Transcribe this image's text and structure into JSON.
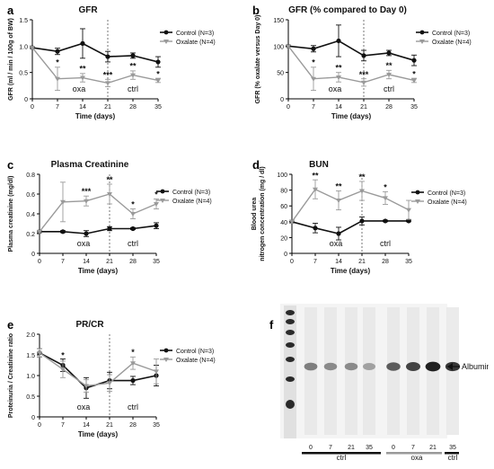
{
  "panels": [
    {
      "letter": "a",
      "title": "GFR",
      "ylabel": "GFR (ml / min / 100g of BW)",
      "xlabel": "Time (days)",
      "yticks": [
        "0",
        "0.5",
        "1.0",
        "1.5"
      ],
      "ylim": [
        0,
        1.5
      ],
      "xticks": [
        "0",
        "7",
        "14",
        "21",
        "28",
        "35"
      ],
      "phase_labels": [
        "oxa",
        "ctrl"
      ],
      "legend": [
        "Control (N=3)",
        "Oxalate (N=4)"
      ]
    },
    {
      "letter": "b",
      "title": "GFR (% compared to Day 0)",
      "ylabel": "GFR (% oxalate versus Day 0)",
      "xlabel": "Time (days)",
      "yticks": [
        "0",
        "50",
        "100",
        "150"
      ],
      "ylim": [
        0,
        150
      ],
      "xticks": [
        "0",
        "7",
        "14",
        "21",
        "28",
        "35"
      ],
      "phase_labels": [
        "oxa",
        "ctrl"
      ],
      "legend": [
        "Control (N=3)",
        "Oxalate (N=4)"
      ]
    },
    {
      "letter": "c",
      "title": "Plasma Creatinine",
      "ylabel": "Plasma creatinine (mg/dl)",
      "xlabel": "Time (days)",
      "yticks": [
        "0",
        "0.2",
        "0.4",
        "0.6",
        "0.8"
      ],
      "ylim": [
        0,
        0.8
      ],
      "xticks": [
        "0",
        "7",
        "14",
        "21",
        "28",
        "35"
      ],
      "phase_labels": [
        "oxa",
        "ctrl"
      ],
      "legend": [
        "Control (N=3)",
        "Oxalate (N=4)"
      ]
    },
    {
      "letter": "d",
      "title": "BUN",
      "ylabel": "Blood urea nitrogen concentration (mg / dl)",
      "xlabel": "Time (days)",
      "yticks": [
        "0",
        "20",
        "40",
        "60",
        "80",
        "100"
      ],
      "ylim": [
        0,
        100
      ],
      "xticks": [
        "0",
        "7",
        "14",
        "21",
        "28",
        "35"
      ],
      "phase_labels": [
        "oxa",
        "ctrl"
      ],
      "legend": [
        "Control (N=3)",
        "Oxalate (N=4)"
      ]
    },
    {
      "letter": "e",
      "title": "PR/CR",
      "ylabel": "Proteinuria / Creatinine ratio",
      "xlabel": "Time (days)",
      "yticks": [
        "0",
        "0.5",
        "1.0",
        "1.5",
        "2.0"
      ],
      "ylim": [
        0,
        2.0
      ],
      "xticks": [
        "0",
        "7",
        "14",
        "21",
        "28",
        "35"
      ],
      "phase_labels": [
        "oxa",
        "ctrl"
      ],
      "legend": [
        "Control (N=3)",
        "Oxalate (N=4)"
      ]
    }
  ],
  "chart_data": [
    {
      "type": "line",
      "title": "GFR",
      "xlabel": "Time (days)",
      "ylabel": "GFR (ml / min / 100g of BW)",
      "x": [
        0,
        7,
        14,
        21,
        28,
        35
      ],
      "ylim": [
        0,
        1.5
      ],
      "xlim": [
        0,
        35
      ],
      "series": [
        {
          "name": "Control (N=3)",
          "values": [
            0.97,
            0.9,
            1.05,
            0.8,
            0.82,
            0.7
          ],
          "errors": [
            0.02,
            0.06,
            0.28,
            0.1,
            0.05,
            0.1
          ]
        },
        {
          "name": "Oxalate (N=4)",
          "values": [
            0.97,
            0.38,
            0.4,
            0.3,
            0.45,
            0.35
          ],
          "errors": [
            0.02,
            0.22,
            0.08,
            0.07,
            0.08,
            0.04
          ]
        }
      ],
      "annotations": [
        {
          "x": 7,
          "y": 0.64,
          "text": "*"
        },
        {
          "x": 14,
          "y": 0.52,
          "text": "**"
        },
        {
          "x": 21,
          "y": 0.4,
          "text": "***"
        },
        {
          "x": 28,
          "y": 0.57,
          "text": "**"
        },
        {
          "x": 35,
          "y": 0.42,
          "text": "*"
        }
      ],
      "divider_x": 21
    },
    {
      "type": "line",
      "title": "GFR (% compared to Day 0)",
      "xlabel": "Time (days)",
      "ylabel": "GFR (% oxalate versus Day 0)",
      "x": [
        0,
        7,
        14,
        21,
        28,
        35
      ],
      "ylim": [
        0,
        150
      ],
      "xlim": [
        0,
        35
      ],
      "series": [
        {
          "name": "Control (N=3)",
          "values": [
            100,
            95,
            110,
            82,
            87,
            73
          ],
          "errors": [
            2,
            6,
            30,
            10,
            5,
            10
          ]
        },
        {
          "name": "Oxalate (N=4)",
          "values": [
            100,
            38,
            41,
            31,
            46,
            35
          ],
          "errors": [
            2,
            22,
            9,
            7,
            8,
            4
          ]
        }
      ],
      "annotations": [
        {
          "x": 7,
          "y": 64,
          "text": "*"
        },
        {
          "x": 14,
          "y": 54,
          "text": "**"
        },
        {
          "x": 21,
          "y": 41,
          "text": "***"
        },
        {
          "x": 28,
          "y": 58,
          "text": "**"
        },
        {
          "x": 35,
          "y": 42,
          "text": "*"
        }
      ],
      "divider_x": 21
    },
    {
      "type": "line",
      "title": "Plasma Creatinine",
      "xlabel": "Time (days)",
      "ylabel": "Plasma creatinine (mg/dl)",
      "x": [
        0,
        7,
        14,
        21,
        28,
        35
      ],
      "ylim": [
        0,
        0.8
      ],
      "xlim": [
        0,
        35
      ],
      "series": [
        {
          "name": "Control (N=3)",
          "values": [
            0.22,
            0.22,
            0.2,
            0.25,
            0.25,
            0.28
          ],
          "errors": [
            0.01,
            0.01,
            0.03,
            0.02,
            0.01,
            0.03
          ]
        },
        {
          "name": "Oxalate (N=4)",
          "values": [
            0.22,
            0.52,
            0.53,
            0.6,
            0.4,
            0.5
          ],
          "errors": [
            0.01,
            0.2,
            0.05,
            0.1,
            0.05,
            0.05
          ]
        }
      ],
      "annotations": [
        {
          "x": 14,
          "y": 0.6,
          "text": "***"
        },
        {
          "x": 21,
          "y": 0.72,
          "text": "**"
        },
        {
          "x": 28,
          "y": 0.47,
          "text": "*"
        },
        {
          "x": 35,
          "y": 0.57,
          "text": "*"
        }
      ],
      "divider_x": 21
    },
    {
      "type": "line",
      "title": "BUN",
      "xlabel": "Time (days)",
      "ylabel": "Blood urea nitrogen concentration (mg / dl)",
      "x": [
        0,
        7,
        14,
        21,
        28,
        35
      ],
      "ylim": [
        0,
        100
      ],
      "xlim": [
        0,
        35
      ],
      "series": [
        {
          "name": "Control (N=3)",
          "values": [
            40,
            32,
            25,
            41,
            41,
            41
          ],
          "errors": [
            2,
            6,
            8,
            5,
            1,
            1
          ]
        },
        {
          "name": "Oxalate (N=4)",
          "values": [
            40,
            81,
            67,
            79,
            70,
            55
          ],
          "errors": [
            2,
            12,
            12,
            12,
            8,
            12
          ]
        }
      ],
      "annotations": [
        {
          "x": 7,
          "y": 95,
          "text": "**"
        },
        {
          "x": 14,
          "y": 81,
          "text": "**"
        },
        {
          "x": 21,
          "y": 93,
          "text": "**"
        },
        {
          "x": 28,
          "y": 80,
          "text": "*"
        }
      ],
      "divider_x": 21
    },
    {
      "type": "line",
      "title": "PR/CR",
      "xlabel": "Time (days)",
      "ylabel": "Proteinuria / Creatinine ratio",
      "x": [
        0,
        7,
        14,
        21,
        28,
        35
      ],
      "ylim": [
        0,
        2.0
      ],
      "xlim": [
        0,
        35
      ],
      "series": [
        {
          "name": "Control (N=3)",
          "values": [
            1.55,
            1.25,
            0.7,
            0.88,
            0.88,
            1.0
          ],
          "errors": [
            0.1,
            0.15,
            0.25,
            0.2,
            0.1,
            0.25
          ]
        },
        {
          "name": "Oxalate (N=4)",
          "values": [
            1.55,
            1.15,
            0.75,
            0.82,
            1.3,
            1.1
          ],
          "errors": [
            0.1,
            0.2,
            0.15,
            0.2,
            0.15,
            0.3
          ]
        }
      ],
      "annotations": [
        {
          "x": 7,
          "y": 1.42,
          "text": "*"
        },
        {
          "x": 28,
          "y": 1.5,
          "text": "*"
        }
      ],
      "divider_x": 21
    }
  ],
  "blot": {
    "letter": "f",
    "band_label": "Albumine",
    "lane_labels": [
      "0",
      "7",
      "21",
      "35",
      "0",
      "7",
      "21",
      "35"
    ],
    "group_labels": [
      "ctrl",
      "oxa",
      "ctrl"
    ],
    "band_intensity": [
      0.55,
      0.5,
      0.5,
      0.4,
      0.7,
      0.8,
      0.95,
      0.85
    ]
  }
}
